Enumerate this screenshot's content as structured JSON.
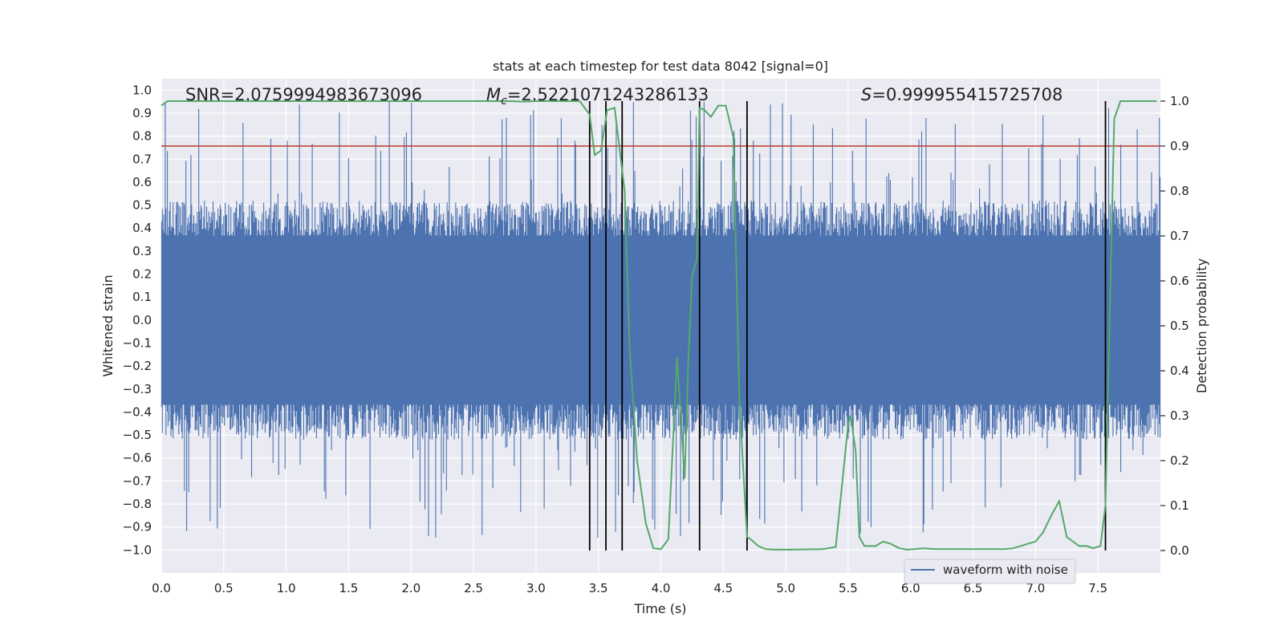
{
  "chart_data": {
    "type": "line",
    "title": "stats at each timestep for test data 8042 [signal=0]",
    "xlabel": "Time (s)",
    "ylabel_left": "Whitened strain",
    "ylabel_right": "Detection probability",
    "xlim": [
      0,
      8
    ],
    "ylim_left": [
      -1.1,
      1.05
    ],
    "ylim_right": [
      -0.05,
      1.05
    ],
    "x_ticks": [
      "0.0",
      "0.5",
      "1.0",
      "1.5",
      "2.0",
      "2.5",
      "3.0",
      "3.5",
      "4.0",
      "4.5",
      "5.0",
      "5.5",
      "6.0",
      "6.5",
      "7.0",
      "7.5"
    ],
    "y_ticks_left": [
      "1.0",
      "0.9",
      "0.8",
      "0.7",
      "0.6",
      "0.5",
      "0.4",
      "0.3",
      "0.2",
      "0.1",
      "0.0",
      "-0.1",
      "-0.2",
      "-0.3",
      "-0.4",
      "-0.5",
      "-0.6",
      "-0.7",
      "-0.8",
      "-0.9",
      "-1.0"
    ],
    "y_ticks_right": [
      "1.0",
      "0.9",
      "0.8",
      "0.7",
      "0.6",
      "0.5",
      "0.4",
      "0.3",
      "0.2",
      "0.1",
      "0.0"
    ],
    "annotations": {
      "snr": "SNR=2.0759994983673096",
      "mc_symbol": "M",
      "mc_sub": "c",
      "mc_value": "=2.5221071243286133",
      "s_symbol": "S",
      "s_value": "=0.999955415725708"
    },
    "legend": {
      "label": "waveform with noise",
      "placement": "lower-right"
    },
    "threshold": {
      "value": 0.9,
      "axis": "right",
      "color": "#c0392b"
    },
    "event_lines_x": [
      3.43,
      3.56,
      3.69,
      4.31,
      4.69,
      7.56
    ],
    "series": [
      {
        "name": "waveform with noise",
        "axis": "left",
        "color": "#4c72b0",
        "description": "whitened strain noise, dense band about +/-0.4 with spikes to +/-0.95",
        "envelope_dense": 0.4,
        "spike_max": 0.95
      },
      {
        "name": "detection probability",
        "axis": "right",
        "color": "#55a868",
        "x": [
          0.0,
          0.05,
          0.1,
          0.5,
          1.0,
          1.5,
          2.0,
          2.5,
          2.8,
          2.9,
          3.0,
          3.2,
          3.35,
          3.43,
          3.47,
          3.52,
          3.57,
          3.63,
          3.71,
          3.75,
          3.81,
          3.88,
          3.94,
          4.0,
          4.06,
          4.13,
          4.19,
          4.22,
          4.25,
          4.29,
          4.31,
          4.35,
          4.4,
          4.46,
          4.52,
          4.58,
          4.63,
          4.69,
          4.72,
          4.78,
          4.84,
          4.91,
          4.97,
          5.04,
          5.3,
          5.4,
          5.5,
          5.52,
          5.56,
          5.59,
          5.63,
          5.67,
          5.72,
          5.78,
          5.84,
          5.91,
          5.97,
          6.03,
          6.1,
          6.2,
          6.3,
          6.5,
          6.75,
          6.82,
          6.88,
          6.94,
          7.0,
          7.06,
          7.13,
          7.19,
          7.25,
          7.35,
          7.41,
          7.46,
          7.52,
          7.56,
          7.63,
          7.68,
          7.75,
          7.9,
          7.97
        ],
        "values": [
          0.99,
          1.0,
          1.0,
          1.0,
          1.0,
          1.0,
          1.0,
          1.0,
          1.0,
          0.999,
          1.0,
          1.0,
          1.0,
          0.97,
          0.88,
          0.89,
          0.98,
          0.985,
          0.8,
          0.45,
          0.2,
          0.06,
          0.005,
          0.003,
          0.025,
          0.43,
          0.16,
          0.42,
          0.61,
          0.65,
          0.985,
          0.98,
          0.965,
          0.99,
          0.99,
          0.92,
          0.33,
          0.03,
          0.025,
          0.01,
          0.003,
          0.002,
          0.002,
          0.002,
          0.003,
          0.008,
          0.28,
          0.3,
          0.22,
          0.03,
          0.01,
          0.01,
          0.01,
          0.02,
          0.015,
          0.005,
          0.002,
          0.003,
          0.005,
          0.003,
          0.003,
          0.003,
          0.003,
          0.005,
          0.01,
          0.015,
          0.02,
          0.04,
          0.08,
          0.11,
          0.03,
          0.01,
          0.01,
          0.005,
          0.01,
          0.1,
          0.96,
          1.0,
          1.0,
          1.0,
          1.0
        ]
      }
    ]
  }
}
